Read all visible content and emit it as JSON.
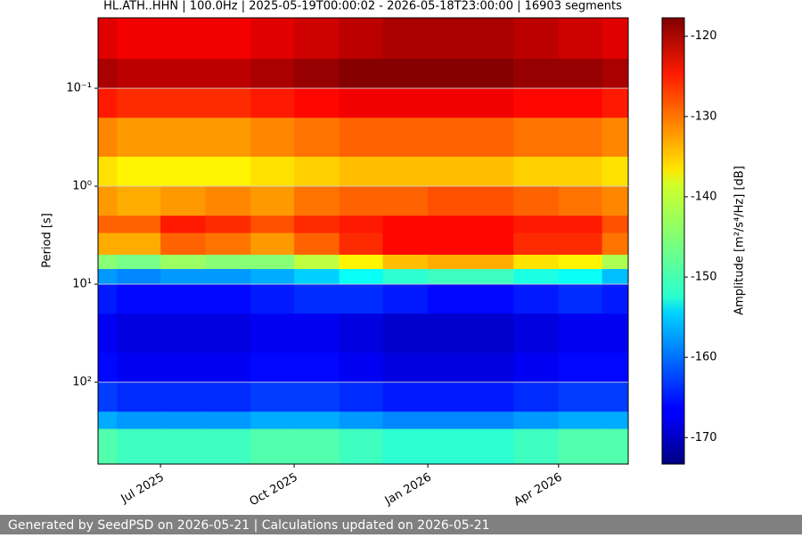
{
  "chart_data": {
    "type": "spectrogram",
    "title": "HL.ATH..HHN | 100.0Hz | 2025-05-19T00:00:02 - 2026-05-18T23:00:00 | 16903 segments",
    "ylabel": "Period [s]",
    "colorbar_label": "Amplitude [m²/s⁴/Hz] [dB]",
    "x": [
      "2025-05",
      "2025-06",
      "2025-07",
      "2025-08",
      "2025-09",
      "2025-10",
      "2025-11",
      "2025-12",
      "2026-01",
      "2026-02",
      "2026-03",
      "2026-04",
      "2026-05"
    ],
    "period_bins": [
      0.0191,
      0.05,
      0.1,
      0.2,
      0.5,
      1,
      2,
      3,
      5,
      7,
      10,
      20,
      50,
      100,
      200,
      300,
      685
    ],
    "z": [
      [
        -123,
        -124,
        -124,
        -124,
        -123,
        -122,
        -121,
        -120,
        -120,
        -120,
        -121,
        -122,
        -123
      ],
      [
        -120,
        -121,
        -121,
        -121,
        -120,
        -119,
        -118,
        -118,
        -118,
        -118,
        -119,
        -119,
        -120
      ],
      [
        -126,
        -127,
        -127,
        -127,
        -126,
        -125,
        -124,
        -124,
        -124,
        -124,
        -125,
        -125,
        -126
      ],
      [
        -132,
        -133,
        -133,
        -133,
        -132,
        -131,
        -130,
        -130,
        -130,
        -130,
        -131,
        -131,
        -132
      ],
      [
        -137,
        -138,
        -138,
        -138,
        -137,
        -136,
        -135,
        -135,
        -135,
        -135,
        -136,
        -136,
        -137
      ],
      [
        -133,
        -134,
        -133,
        -132,
        -133,
        -131,
        -130,
        -130,
        -129,
        -129,
        -130,
        -131,
        -132
      ],
      [
        -130,
        -130,
        -126,
        -127,
        -129,
        -127,
        -126,
        -125,
        -125,
        -125,
        -126,
        -126,
        -129
      ],
      [
        -134,
        -134,
        -130,
        -131,
        -133,
        -130,
        -127,
        -125,
        -125,
        -125,
        -127,
        -127,
        -131
      ],
      [
        -145,
        -146,
        -144,
        -145,
        -145,
        -142,
        -138,
        -135,
        -134,
        -134,
        -137,
        -138,
        -143
      ],
      [
        -158,
        -159,
        -158,
        -158,
        -157,
        -155,
        -152,
        -150,
        -149,
        -149,
        -151,
        -152,
        -156
      ],
      [
        -165,
        -166,
        -166,
        -166,
        -165,
        -164,
        -164,
        -165,
        -166,
        -166,
        -165,
        -164,
        -165
      ],
      [
        -167,
        -168,
        -168,
        -168,
        -167,
        -167,
        -168,
        -169,
        -169,
        -169,
        -168,
        -167,
        -167
      ],
      [
        -166,
        -167,
        -167,
        -167,
        -166,
        -166,
        -167,
        -168,
        -168,
        -168,
        -167,
        -166,
        -166
      ],
      [
        -163,
        -164,
        -164,
        -164,
        -163,
        -163,
        -164,
        -165,
        -165,
        -165,
        -164,
        -163,
        -163
      ],
      [
        -157,
        -158,
        -158,
        -158,
        -157,
        -157,
        -158,
        -159,
        -159,
        -159,
        -158,
        -157,
        -157
      ],
      [
        -148,
        -149,
        -149,
        -149,
        -148,
        -148,
        -149,
        -150,
        -150,
        -150,
        -149,
        -148,
        -148
      ]
    ],
    "xlim": [
      "2025-05-19T00:00:02",
      "2026-05-18T23:00:00"
    ],
    "xticks": [
      {
        "value": "2025-07",
        "label": "Jul 2025"
      },
      {
        "value": "2025-10",
        "label": "Oct 2025"
      },
      {
        "value": "2026-01",
        "label": "Jan 2026"
      },
      {
        "value": "2026-04",
        "label": "Apr 2026"
      }
    ],
    "ylim": [
      685,
      0.0191
    ],
    "yticks": [
      {
        "value": 0.1,
        "label": "10⁻¹"
      },
      {
        "value": 1,
        "label": "10⁰"
      },
      {
        "value": 10,
        "label": "10¹"
      },
      {
        "value": 100,
        "label": "10²"
      }
    ],
    "log_y": true,
    "grid": true,
    "colormap": "jet",
    "clim": [
      -173.3,
      -117.7
    ],
    "cticks": [
      -120,
      -130,
      -140,
      -150,
      -160,
      -170
    ]
  },
  "footer": "Generated by SeedPSD on 2026-05-21 | Calculations updated on 2026-05-21"
}
